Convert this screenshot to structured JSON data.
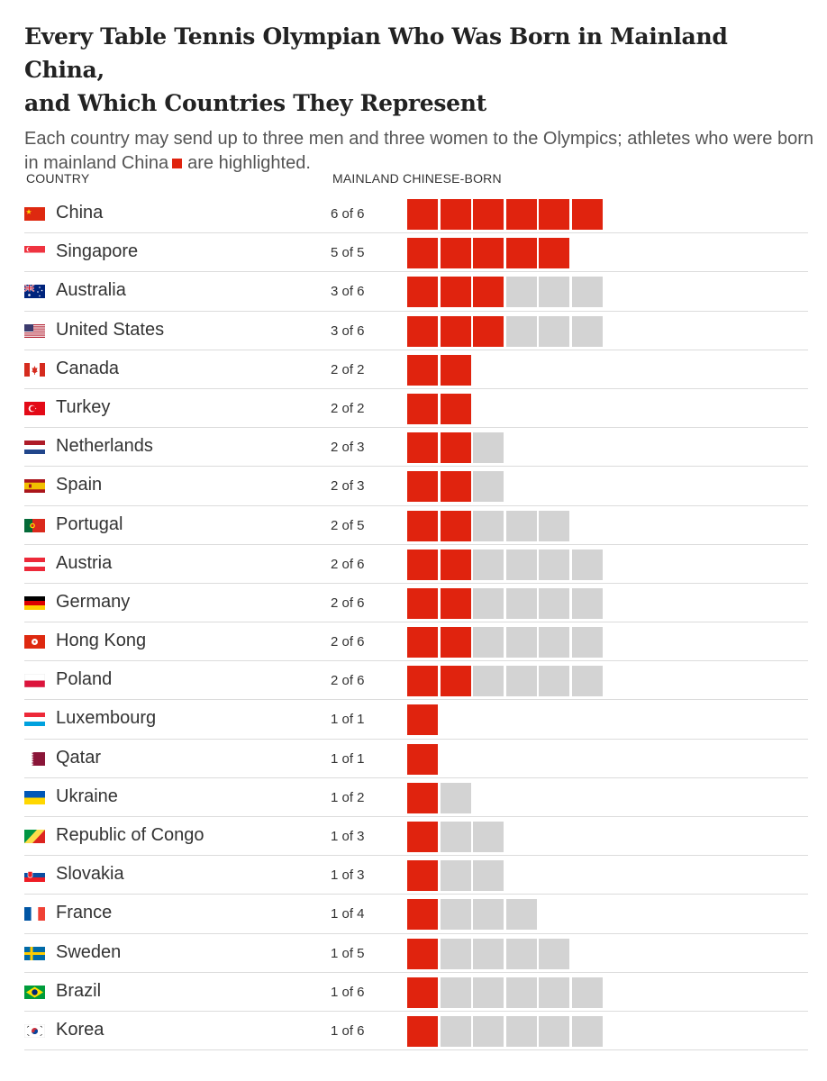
{
  "header": {
    "title_line1": "Every Table Tennis Olympian Who Was Born in Mainland China,",
    "title_line2": "and Which Countries They Represent",
    "subtitle_part1": "Each country may send up to three men and three women to the Olympics; athletes who were born in mainland China",
    "subtitle_part2": "are highlighted."
  },
  "columns": {
    "country": "COUNTRY",
    "mainland": "MAINLAND CHINESE-BORN"
  },
  "colors": {
    "highlight": "#e0230e",
    "other": "#d3d3d3"
  },
  "chart_data": {
    "type": "bar",
    "categories": [
      "China",
      "Singapore",
      "Australia",
      "United States",
      "Canada",
      "Turkey",
      "Netherlands",
      "Spain",
      "Portugal",
      "Austria",
      "Germany",
      "Hong Kong",
      "Poland",
      "Luxembourg",
      "Qatar",
      "Ukraine",
      "Republic of Congo",
      "Slovakia",
      "France",
      "Sweden",
      "Brazil",
      "Korea"
    ],
    "series": [
      {
        "values": [
          6,
          5,
          3,
          3,
          2,
          2,
          2,
          2,
          2,
          2,
          2,
          2,
          2,
          1,
          1,
          1,
          1,
          1,
          1,
          1,
          1,
          1
        ]
      },
      {
        "values": [
          6,
          5,
          6,
          6,
          2,
          2,
          3,
          3,
          5,
          6,
          6,
          6,
          6,
          1,
          1,
          2,
          3,
          3,
          4,
          5,
          6,
          6
        ]
      }
    ],
    "labels": [
      "6 of 6",
      "5 of 5",
      "3 of 6",
      "3 of 6",
      "2 of 2",
      "2 of 2",
      "2 of 3",
      "2 of 3",
      "2 of 5",
      "2 of 6",
      "2 of 6",
      "2 of 6",
      "2 of 6",
      "1 of 1",
      "1 of 1",
      "1 of 2",
      "1 of 3",
      "1 of 3",
      "1 of 4",
      "1 of 5",
      "1 of 6",
      "1 of 6"
    ]
  },
  "flags": [
    "china-flag",
    "singapore-flag",
    "australia-flag",
    "united-states-flag",
    "canada-flag",
    "turkey-flag",
    "netherlands-flag",
    "spain-flag",
    "portugal-flag",
    "austria-flag",
    "germany-flag",
    "hong-kong-flag",
    "poland-flag",
    "luxembourg-flag",
    "qatar-flag",
    "ukraine-flag",
    "republic-of-congo-flag",
    "slovakia-flag",
    "france-flag",
    "sweden-flag",
    "brazil-flag",
    "korea-flag"
  ]
}
